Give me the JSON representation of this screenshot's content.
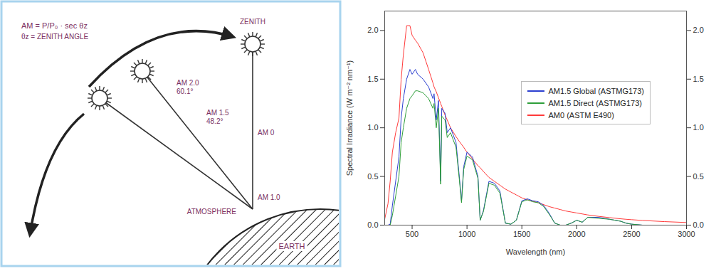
{
  "diagram": {
    "formula": "AM = P/P₀ · sec θz",
    "formula_note": "θz = ZENITH ANGLE",
    "zenith": "ZENITH",
    "paths": [
      {
        "label": "AM 2.0",
        "angle": "60.1°"
      },
      {
        "label": "AM 1.5",
        "angle": "48.2°"
      }
    ],
    "am0": "AM 0",
    "am1": "AM 1.0",
    "atmosphere": "ATMOSPHERE",
    "earth": "EARTH"
  },
  "chart_data": {
    "type": "line",
    "x_label": "Wavelength (nm)",
    "y_label": "Spectral Irradiance (W m⁻² nm⁻¹)",
    "x": [
      250,
      280,
      300,
      320,
      350,
      380,
      400,
      420,
      450,
      480,
      500,
      530,
      550,
      600,
      650,
      690,
      700,
      720,
      740,
      760,
      770,
      800,
      820,
      850,
      900,
      930,
      950,
      970,
      1000,
      1050,
      1100,
      1120,
      1150,
      1200,
      1250,
      1300,
      1350,
      1400,
      1450,
      1500,
      1550,
      1600,
      1650,
      1700,
      1750,
      1800,
      1850,
      1900,
      1950,
      2000,
      2050,
      2100,
      2200,
      2300,
      2400,
      2450,
      2500,
      2600,
      2800,
      3000
    ],
    "series": [
      {
        "name": "AM0 (ASTM E490)",
        "color": "#ff3a3a",
        "values": [
          0.06,
          0.22,
          0.45,
          0.75,
          0.95,
          1.1,
          1.5,
          1.75,
          2.05,
          2.05,
          1.95,
          1.9,
          1.87,
          1.77,
          1.6,
          1.46,
          1.42,
          1.37,
          1.31,
          1.25,
          1.22,
          1.13,
          1.08,
          1.0,
          0.91,
          0.86,
          0.83,
          0.8,
          0.75,
          0.68,
          0.61,
          0.59,
          0.55,
          0.49,
          0.45,
          0.41,
          0.37,
          0.34,
          0.31,
          0.28,
          0.26,
          0.245,
          0.23,
          0.21,
          0.19,
          0.175,
          0.16,
          0.145,
          0.135,
          0.125,
          0.115,
          0.105,
          0.09,
          0.077,
          0.065,
          0.06,
          0.056,
          0.048,
          0.036,
          0.027
        ]
      },
      {
        "name": "AM1.5 Global (ASTMG173)",
        "color": "#2b3fd0",
        "values": [
          null,
          0,
          0.01,
          0.2,
          0.45,
          0.7,
          1.1,
          1.3,
          1.5,
          1.6,
          1.55,
          1.6,
          1.55,
          1.5,
          1.42,
          1.3,
          1.35,
          1.08,
          1.28,
          0.45,
          1.2,
          1.15,
          0.95,
          1.0,
          0.85,
          0.5,
          0.25,
          0.6,
          0.75,
          0.7,
          0.5,
          0.05,
          0.15,
          0.45,
          0.43,
          0.35,
          0.02,
          0.01,
          0.05,
          0.25,
          0.27,
          0.25,
          0.24,
          0.2,
          0.12,
          0.02,
          0,
          0,
          0.02,
          0.05,
          0.03,
          0.08,
          0.08,
          0.06,
          0.04,
          0.02,
          0.01,
          0,
          0,
          0
        ]
      },
      {
        "name": "AM1.5 Direct (ASTMG173)",
        "color": "#2e9e3a",
        "values": [
          null,
          0,
          0,
          0.1,
          0.3,
          0.5,
          0.85,
          1.0,
          1.2,
          1.3,
          1.33,
          1.38,
          1.38,
          1.36,
          1.3,
          1.2,
          1.25,
          1.0,
          1.2,
          0.42,
          1.12,
          1.08,
          0.9,
          0.95,
          0.8,
          0.47,
          0.23,
          0.57,
          0.71,
          0.67,
          0.48,
          0.05,
          0.14,
          0.43,
          0.41,
          0.33,
          0.02,
          0.01,
          0.05,
          0.24,
          0.26,
          0.24,
          0.23,
          0.19,
          0.11,
          0.02,
          0,
          0,
          0.02,
          0.05,
          0.03,
          0.08,
          0.07,
          0.06,
          0.04,
          0.02,
          0.01,
          0,
          0,
          0
        ]
      }
    ],
    "xlim": [
      250,
      3000
    ],
    "xticks": [
      500,
      1000,
      1500,
      2000,
      2500,
      3000
    ],
    "ylim": [
      0,
      2.2
    ],
    "yticks": [
      {
        "value": 0,
        "label": "0.0"
      },
      {
        "value": 0.5,
        "label": "0.5"
      },
      {
        "value": 1,
        "label": "1.0"
      },
      {
        "value": 1.5,
        "label": "1.5"
      },
      {
        "value": 2,
        "label": "2.0"
      }
    ],
    "grid": false,
    "legend": "right"
  }
}
